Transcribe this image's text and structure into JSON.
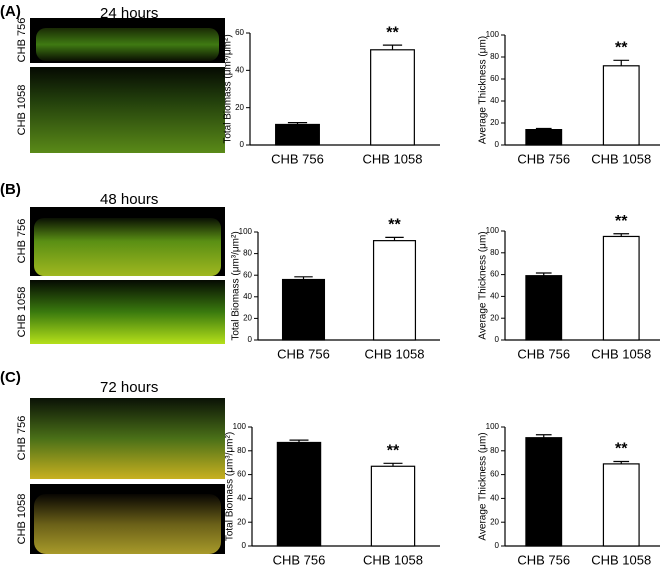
{
  "panels": [
    {
      "label": "(A)",
      "time": "24 hours",
      "image_labels": [
        "CHB 756",
        "CHB 1058"
      ]
    },
    {
      "label": "(B)",
      "time": "48 hours",
      "image_labels": [
        "CHB 756",
        "CHB 1058"
      ]
    },
    {
      "label": "(C)",
      "time": "72 hours",
      "image_labels": [
        "CHB 756",
        "CHB 1058"
      ]
    }
  ],
  "chart_data": [
    {
      "type": "bar",
      "ylabel": "Total Biomass (μm³/μm²)",
      "categories": [
        "CHB 756",
        "CHB 1058"
      ],
      "values": [
        11,
        51
      ],
      "errors": [
        1,
        2.5
      ],
      "colors": [
        "#000000",
        "#ffffff"
      ],
      "ylim": [
        0,
        60
      ],
      "yticks": [
        0,
        20,
        40,
        60
      ],
      "annotations": [
        {
          "text": "**",
          "category": "CHB 1058"
        }
      ]
    },
    {
      "type": "bar",
      "ylabel": "Average Thickness (μm)",
      "categories": [
        "CHB 756",
        "CHB 1058"
      ],
      "values": [
        14,
        72
      ],
      "errors": [
        1,
        5
      ],
      "colors": [
        "#000000",
        "#ffffff"
      ],
      "ylim": [
        0,
        100
      ],
      "yticks": [
        0,
        20,
        40,
        60,
        80,
        100
      ],
      "annotations": [
        {
          "text": "**",
          "category": "CHB 1058"
        }
      ]
    },
    {
      "type": "bar",
      "ylabel": "Total Biomass (μm³/μm²)",
      "categories": [
        "CHB 756",
        "CHB 1058"
      ],
      "values": [
        56,
        92
      ],
      "errors": [
        2.5,
        3
      ],
      "colors": [
        "#000000",
        "#ffffff"
      ],
      "ylim": [
        0,
        100
      ],
      "yticks": [
        0,
        20,
        40,
        60,
        80,
        100
      ],
      "annotations": [
        {
          "text": "**",
          "category": "CHB 1058"
        }
      ]
    },
    {
      "type": "bar",
      "ylabel": "Average Thickness (μm)",
      "categories": [
        "CHB 756",
        "CHB 1058"
      ],
      "values": [
        59,
        95
      ],
      "errors": [
        2.5,
        2.5
      ],
      "colors": [
        "#000000",
        "#ffffff"
      ],
      "ylim": [
        0,
        100
      ],
      "yticks": [
        0,
        20,
        40,
        60,
        80,
        100
      ],
      "annotations": [
        {
          "text": "**",
          "category": "CHB 1058"
        }
      ]
    },
    {
      "type": "bar",
      "ylabel": "Total Biomass (μm³/μm²)",
      "categories": [
        "CHB 756",
        "CHB 1058"
      ],
      "values": [
        87,
        67
      ],
      "errors": [
        2,
        2.5
      ],
      "colors": [
        "#000000",
        "#ffffff"
      ],
      "ylim": [
        0,
        100
      ],
      "yticks": [
        0,
        20,
        40,
        60,
        80,
        100
      ],
      "annotations": [
        {
          "text": "**",
          "category": "CHB 1058"
        }
      ]
    },
    {
      "type": "bar",
      "ylabel": "Average Thickness (μm)",
      "categories": [
        "CHB 756",
        "CHB 1058"
      ],
      "values": [
        91,
        69
      ],
      "errors": [
        2.5,
        2
      ],
      "colors": [
        "#000000",
        "#ffffff"
      ],
      "ylim": [
        0,
        100
      ],
      "yticks": [
        0,
        20,
        40,
        60,
        80,
        100
      ],
      "annotations": [
        {
          "text": "**",
          "category": "CHB 1058"
        }
      ]
    }
  ]
}
